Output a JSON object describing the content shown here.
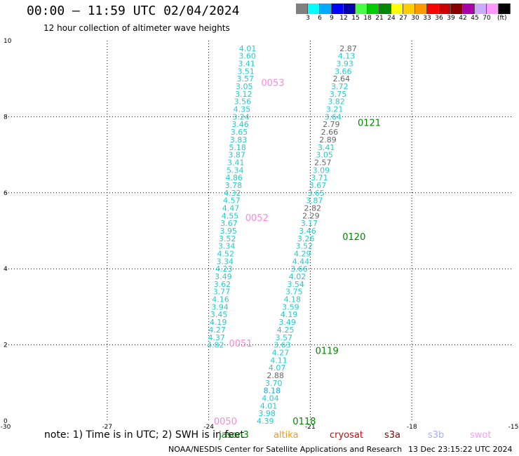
{
  "title": "00:00 – 11:59 UTC 02/04/2024",
  "subtitle": "12 hour collection of altimeter wave heights",
  "colorbar": {
    "unit": "(ft)",
    "colors": [
      "#808080",
      "#00ffff",
      "#00aaff",
      "#0000ff",
      "#0000aa",
      "#44ff44",
      "#00cc00",
      "#008800",
      "#ffff00",
      "#ffcc00",
      "#ff9900",
      "#ff0000",
      "#cc0000",
      "#880000",
      "#aa00aa",
      "#ccaaff",
      "#ff99ff",
      "#000000"
    ],
    "labels": [
      "3",
      "6",
      "9",
      "12",
      "15",
      "18",
      "21",
      "24",
      "27",
      "30",
      "33",
      "36",
      "39",
      "42",
      "45",
      "70"
    ]
  },
  "note": "note: 1) Time is in UTC; 2) SWH is in feet",
  "satellites": [
    {
      "name": "jason3",
      "color": "#008800"
    },
    {
      "name": "altika",
      "color": "#ff9900"
    },
    {
      "name": "cryosat",
      "color": "#dd0000"
    },
    {
      "name": "s3a",
      "color": "#880000"
    },
    {
      "name": "s3b",
      "color": "#aaaaff"
    },
    {
      "name": "swot",
      "color": "#ff99ff"
    }
  ],
  "footer": "NOAA/NESDIS Center for Satellite Applications and Research",
  "timestamp": "13 Dec 23:15:22 UTC 2024",
  "chart_data": {
    "type": "scatter",
    "xlim": [
      -30,
      -15
    ],
    "ylim": [
      0,
      10
    ],
    "x_ticks": [
      "-30",
      "-27",
      "-24",
      "-21",
      "-18",
      "-15"
    ],
    "y_ticks": [
      "0",
      "2",
      "4",
      "6",
      "8",
      "10"
    ],
    "grid": true,
    "tracks": [
      {
        "name": "swot",
        "color": "#ff99ff",
        "points": [
          {
            "x": -22.85,
            "y": 9.8,
            "v": "4.01",
            "c": "#22cccc"
          },
          {
            "x": -22.86,
            "y": 9.6,
            "v": "3.60",
            "c": "#22cccc"
          },
          {
            "x": -22.88,
            "y": 9.4,
            "v": "3.41",
            "c": "#22cccc"
          },
          {
            "x": -22.9,
            "y": 9.2,
            "v": "3.51",
            "c": "#22cccc"
          },
          {
            "x": -22.92,
            "y": 9.0,
            "v": "3.57",
            "c": "#22cccc"
          },
          {
            "x": -22.95,
            "y": 8.8,
            "v": "3.05",
            "c": "#22cccc"
          },
          {
            "x": -22.97,
            "y": 8.6,
            "v": "3.12",
            "c": "#22cccc"
          },
          {
            "x": -23.0,
            "y": 8.4,
            "v": "3.56",
            "c": "#22cccc"
          },
          {
            "x": -23.02,
            "y": 8.2,
            "v": "4.35",
            "c": "#22cccc"
          },
          {
            "x": -23.05,
            "y": 8.0,
            "v": "3.24",
            "c": "#22cccc"
          },
          {
            "x": -23.07,
            "y": 7.8,
            "v": "3.46",
            "c": "#22cccc"
          },
          {
            "x": -23.1,
            "y": 7.6,
            "v": "3.65",
            "c": "#22cccc"
          },
          {
            "x": -23.12,
            "y": 7.4,
            "v": "3.83",
            "c": "#22cccc"
          },
          {
            "x": -23.15,
            "y": 7.2,
            "v": "5.18",
            "c": "#22cccc"
          },
          {
            "x": -23.17,
            "y": 7.0,
            "v": "3.87",
            "c": "#22cccc"
          },
          {
            "x": -23.2,
            "y": 6.8,
            "v": "3.41",
            "c": "#22cccc"
          },
          {
            "x": -23.22,
            "y": 6.6,
            "v": "5.34",
            "c": "#22cccc"
          },
          {
            "x": -23.25,
            "y": 6.4,
            "v": "4.86",
            "c": "#22cccc"
          },
          {
            "x": -23.27,
            "y": 6.2,
            "v": "3.78",
            "c": "#22cccc"
          },
          {
            "x": -23.3,
            "y": 6.0,
            "v": "4.32",
            "c": "#22cccc"
          },
          {
            "x": -23.32,
            "y": 5.8,
            "v": "4.57",
            "c": "#22cccc"
          },
          {
            "x": -23.35,
            "y": 5.6,
            "v": "4.47",
            "c": "#22cccc"
          },
          {
            "x": -23.37,
            "y": 5.4,
            "v": "4.55",
            "c": "#22cccc"
          },
          {
            "x": -23.4,
            "y": 5.2,
            "v": "3.67",
            "c": "#22cccc"
          },
          {
            "x": -23.42,
            "y": 5.0,
            "v": "3.95",
            "c": "#22cccc"
          },
          {
            "x": -23.45,
            "y": 4.8,
            "v": "3.52",
            "c": "#22cccc"
          },
          {
            "x": -23.47,
            "y": 4.6,
            "v": "3.34",
            "c": "#22cccc"
          },
          {
            "x": -23.5,
            "y": 4.4,
            "v": "4.52",
            "c": "#22cccc"
          },
          {
            "x": -23.52,
            "y": 4.2,
            "v": "3.34",
            "c": "#22cccc"
          },
          {
            "x": -23.55,
            "y": 4.0,
            "v": "4.23",
            "c": "#22cccc"
          },
          {
            "x": -23.57,
            "y": 3.8,
            "v": "3.49",
            "c": "#22cccc"
          },
          {
            "x": -23.6,
            "y": 3.6,
            "v": "3.62",
            "c": "#22cccc"
          },
          {
            "x": -23.62,
            "y": 3.4,
            "v": "3.77",
            "c": "#22cccc"
          },
          {
            "x": -23.65,
            "y": 3.2,
            "v": "4.16",
            "c": "#22cccc"
          },
          {
            "x": -23.67,
            "y": 3.0,
            "v": "3.94",
            "c": "#22cccc"
          },
          {
            "x": -23.7,
            "y": 2.8,
            "v": "3.45",
            "c": "#22cccc"
          },
          {
            "x": -23.72,
            "y": 2.6,
            "v": "4.19",
            "c": "#22cccc"
          },
          {
            "x": -23.75,
            "y": 2.4,
            "v": "4.27",
            "c": "#22cccc"
          },
          {
            "x": -23.77,
            "y": 2.2,
            "v": "4.37",
            "c": "#22cccc"
          },
          {
            "x": -23.8,
            "y": 2.0,
            "v": "4.82",
            "c": "#22cccc"
          }
        ]
      },
      {
        "name": "jason3",
        "color": "#008800",
        "points": [
          {
            "x": -19.88,
            "y": 9.8,
            "v": "2.87",
            "c": "#666666"
          },
          {
            "x": -19.93,
            "y": 9.6,
            "v": "4.13",
            "c": "#22cccc"
          },
          {
            "x": -19.98,
            "y": 9.4,
            "v": "3.93",
            "c": "#22cccc"
          },
          {
            "x": -20.03,
            "y": 9.2,
            "v": "3.66",
            "c": "#22cccc"
          },
          {
            "x": -20.08,
            "y": 9.0,
            "v": "2.64",
            "c": "#666666"
          },
          {
            "x": -20.13,
            "y": 8.8,
            "v": "3.72",
            "c": "#22cccc"
          },
          {
            "x": -20.18,
            "y": 8.6,
            "v": "3.75",
            "c": "#22cccc"
          },
          {
            "x": -20.23,
            "y": 8.4,
            "v": "3.82",
            "c": "#22cccc"
          },
          {
            "x": -20.28,
            "y": 8.2,
            "v": "3.21",
            "c": "#22cccc"
          },
          {
            "x": -20.33,
            "y": 8.0,
            "v": "3.64",
            "c": "#22cccc"
          },
          {
            "x": -20.38,
            "y": 7.8,
            "v": "2.79",
            "c": "#666666"
          },
          {
            "x": -20.43,
            "y": 7.6,
            "v": "2.66",
            "c": "#666666"
          },
          {
            "x": -20.48,
            "y": 7.4,
            "v": "2.89",
            "c": "#666666"
          },
          {
            "x": -20.53,
            "y": 7.2,
            "v": "3.41",
            "c": "#22cccc"
          },
          {
            "x": -20.58,
            "y": 7.0,
            "v": "3.05",
            "c": "#22cccc"
          },
          {
            "x": -20.63,
            "y": 6.8,
            "v": "2.57",
            "c": "#666666"
          },
          {
            "x": -20.68,
            "y": 6.6,
            "v": "3.09",
            "c": "#22cccc"
          },
          {
            "x": -20.73,
            "y": 6.4,
            "v": "3.71",
            "c": "#22cccc"
          },
          {
            "x": -20.78,
            "y": 6.2,
            "v": "3.67",
            "c": "#22cccc"
          },
          {
            "x": -20.83,
            "y": 6.0,
            "v": "3.65",
            "c": "#22cccc"
          },
          {
            "x": -20.88,
            "y": 5.8,
            "v": "3.87",
            "c": "#22cccc"
          },
          {
            "x": -20.93,
            "y": 5.6,
            "v": "2.82",
            "c": "#666666"
          },
          {
            "x": -20.98,
            "y": 5.4,
            "v": "2.29",
            "c": "#666666"
          },
          {
            "x": -21.03,
            "y": 5.2,
            "v": "3.17",
            "c": "#22cccc"
          },
          {
            "x": -21.08,
            "y": 5.0,
            "v": "3.46",
            "c": "#22cccc"
          },
          {
            "x": -21.13,
            "y": 4.8,
            "v": "3.26",
            "c": "#22cccc"
          },
          {
            "x": -21.18,
            "y": 4.6,
            "v": "3.52",
            "c": "#22cccc"
          },
          {
            "x": -21.23,
            "y": 4.4,
            "v": "4.29",
            "c": "#22cccc"
          },
          {
            "x": -21.28,
            "y": 4.2,
            "v": "4.44",
            "c": "#22cccc"
          },
          {
            "x": -21.33,
            "y": 4.0,
            "v": "3.66",
            "c": "#22cccc"
          },
          {
            "x": -21.38,
            "y": 3.8,
            "v": "4.02",
            "c": "#22cccc"
          },
          {
            "x": -21.43,
            "y": 3.6,
            "v": "3.54",
            "c": "#22cccc"
          },
          {
            "x": -21.48,
            "y": 3.4,
            "v": "3.75",
            "c": "#22cccc"
          },
          {
            "x": -21.53,
            "y": 3.2,
            "v": "4.18",
            "c": "#22cccc"
          },
          {
            "x": -21.58,
            "y": 3.0,
            "v": "3.59",
            "c": "#22cccc"
          },
          {
            "x": -21.63,
            "y": 2.8,
            "v": "4.19",
            "c": "#22cccc"
          },
          {
            "x": -21.68,
            "y": 2.6,
            "v": "3.49",
            "c": "#22cccc"
          },
          {
            "x": -21.73,
            "y": 2.4,
            "v": "4.25",
            "c": "#22cccc"
          },
          {
            "x": -21.78,
            "y": 2.2,
            "v": "3.57",
            "c": "#22cccc"
          },
          {
            "x": -21.83,
            "y": 2.0,
            "v": "3.63",
            "c": "#22cccc"
          },
          {
            "x": -21.88,
            "y": 1.8,
            "v": "4.27",
            "c": "#22cccc"
          },
          {
            "x": -21.93,
            "y": 1.6,
            "v": "4.11",
            "c": "#22cccc"
          },
          {
            "x": -21.98,
            "y": 1.4,
            "v": "4.07",
            "c": "#22cccc"
          },
          {
            "x": -22.03,
            "y": 1.2,
            "v": "2.88",
            "c": "#666666"
          },
          {
            "x": -22.08,
            "y": 1.0,
            "v": "3.70",
            "c": "#22cccc"
          },
          {
            "x": -22.13,
            "y": 0.8,
            "v": "8.18",
            "c": "#00aaff"
          },
          {
            "x": -22.18,
            "y": 0.6,
            "v": "4.04",
            "c": "#22cccc"
          },
          {
            "x": -22.23,
            "y": 0.4,
            "v": "4.01",
            "c": "#22cccc"
          },
          {
            "x": -22.28,
            "y": 0.2,
            "v": "3.98",
            "c": "#22cccc"
          },
          {
            "x": -22.33,
            "y": 0.0,
            "v": "4.39",
            "c": "#22cccc"
          }
        ]
      }
    ],
    "pass_labels": [
      {
        "text": "0053",
        "x": -22.45,
        "y": 8.9,
        "color": "#ff88dd"
      },
      {
        "text": "0052",
        "x": -22.92,
        "y": 5.35,
        "color": "#ff88dd"
      },
      {
        "text": "0051",
        "x": -23.4,
        "y": 2.05,
        "color": "#ff88dd"
      },
      {
        "text": "0050",
        "x": -23.85,
        "y": 0.0,
        "color": "#ff88dd"
      },
      {
        "text": "0121",
        "x": -19.6,
        "y": 7.85,
        "color": "#008800"
      },
      {
        "text": "0120",
        "x": -20.05,
        "y": 4.85,
        "color": "#008800"
      },
      {
        "text": "0119",
        "x": -20.85,
        "y": 1.85,
        "color": "#008800"
      },
      {
        "text": "0118",
        "x": -21.52,
        "y": 0.0,
        "color": "#008800"
      }
    ]
  }
}
